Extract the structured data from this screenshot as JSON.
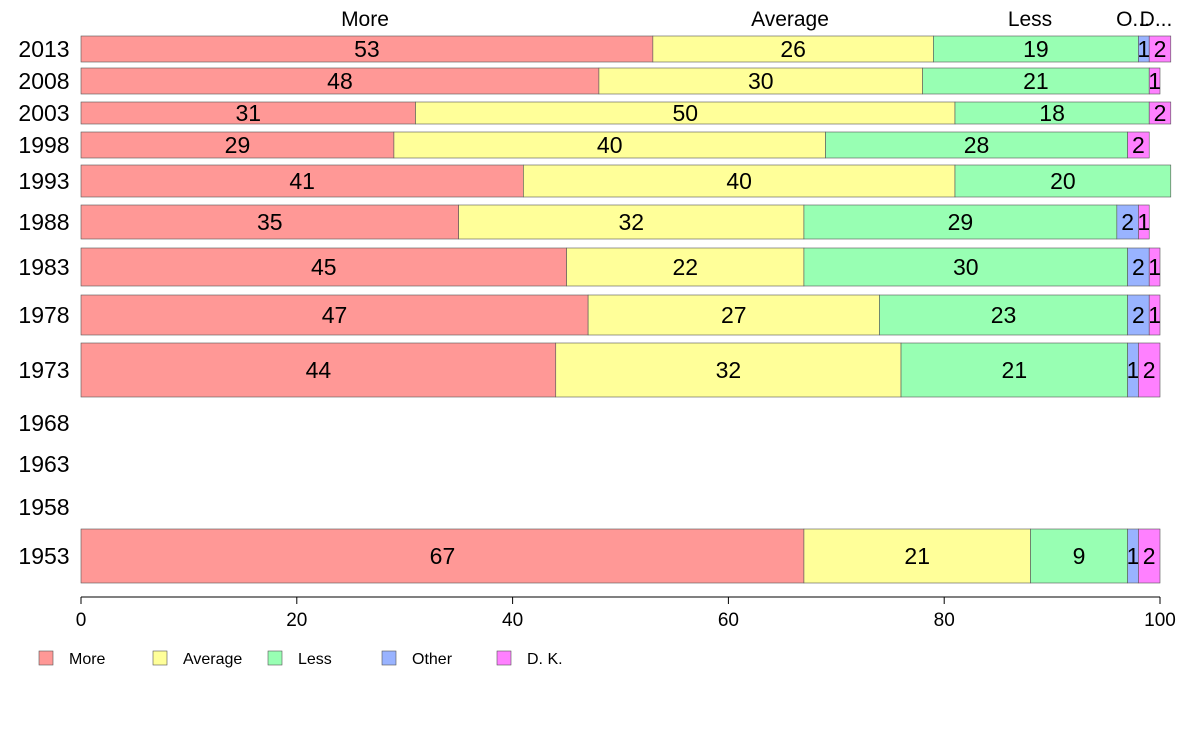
{
  "chart_data": {
    "type": "bar",
    "orientation": "horizontal",
    "stacked": true,
    "categories": [
      "2013",
      "2008",
      "2003",
      "1998",
      "1993",
      "1988",
      "1983",
      "1978",
      "1973",
      "1968",
      "1963",
      "1958",
      "1953"
    ],
    "series": [
      {
        "name": "More",
        "color": "#ff9896",
        "values": [
          53,
          48,
          31,
          29,
          41,
          35,
          45,
          47,
          44,
          null,
          null,
          null,
          67
        ]
      },
      {
        "name": "Average",
        "color": "#ffff99",
        "values": [
          26,
          30,
          50,
          40,
          40,
          32,
          22,
          27,
          32,
          null,
          null,
          null,
          21
        ]
      },
      {
        "name": "Less",
        "color": "#98ffb3",
        "values": [
          19,
          21,
          18,
          28,
          20,
          29,
          30,
          23,
          21,
          null,
          null,
          null,
          9
        ]
      },
      {
        "name": "Other",
        "color": "#99b3ff",
        "values": [
          1,
          0,
          0,
          0,
          0,
          2,
          2,
          2,
          1,
          null,
          null,
          null,
          1
        ]
      },
      {
        "name": "D. K.",
        "color": "#ff80ff",
        "values": [
          2,
          1,
          2,
          2,
          0,
          1,
          1,
          1,
          2,
          null,
          null,
          null,
          2
        ]
      }
    ],
    "top_labels": [
      "More",
      "Average",
      "Less",
      "O...",
      "D..."
    ],
    "x_ticks": [
      0,
      20,
      40,
      60,
      80,
      100
    ],
    "xlim": [
      0,
      100
    ],
    "grid": false,
    "legend_position": "bottom-left"
  }
}
